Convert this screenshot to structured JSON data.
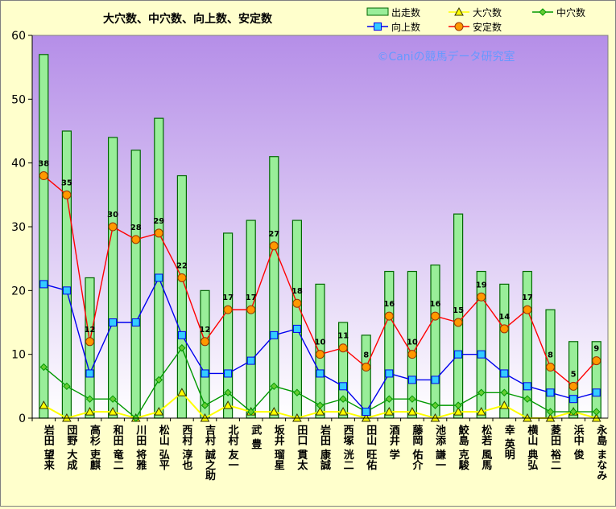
{
  "chart_data": {
    "type": "bar",
    "title": "大穴数、中穴数、向上数、安定数",
    "watermark": "©Caniの競馬データ研究室",
    "ylim": [
      0,
      60
    ],
    "yticks": [
      0,
      10,
      20,
      30,
      40,
      50,
      60
    ],
    "grid": false,
    "legend_position": "top-right",
    "colors": {
      "plot_top": "#b58ee8",
      "plot_bottom": "#ffffff",
      "bar_fill": "#99ee99",
      "bar_stroke": "#006600",
      "big": "#ffff00",
      "mid": "#009900",
      "up": "#0000ee",
      "stable": "#ff0000",
      "stable_marker": "#ff9900",
      "up_marker": "#33ccff",
      "watermark": "#6699ff"
    },
    "categories": [
      "岩田 望来",
      "団野 大成",
      "高杉 吏麒",
      "和田 竜二",
      "川田 将雅",
      "松山 弘平",
      "西村 淳也",
      "吉村 誠之助",
      "北村 友一",
      "武 豊",
      "坂井 瑠星",
      "田口 貫太",
      "岩田 康誠",
      "西塚 洸二",
      "田山 旺佑",
      "酒井 学",
      "藤岡 佑介",
      "池添 謙一",
      "鮫島 克駿",
      "松若 風馬",
      "幸 英明",
      "横山 典弘",
      "菱田 裕二",
      "浜中 俊",
      "永島 まなみ"
    ],
    "series": [
      {
        "name": "出走数",
        "type": "bar",
        "values": [
          57,
          45,
          22,
          44,
          42,
          47,
          38,
          20,
          29,
          31,
          41,
          31,
          21,
          15,
          13,
          23,
          23,
          24,
          32,
          23,
          21,
          23,
          17,
          12,
          12
        ]
      },
      {
        "name": "大穴数",
        "type": "line",
        "values": [
          2,
          0,
          1,
          1,
          0,
          1,
          4,
          0,
          2,
          1,
          1,
          0,
          1,
          1,
          0,
          1,
          1,
          0,
          1,
          1,
          2,
          0,
          0,
          1,
          0
        ]
      },
      {
        "name": "中穴数",
        "type": "line",
        "values": [
          8,
          5,
          3,
          3,
          0,
          6,
          11,
          2,
          4,
          1,
          5,
          4,
          2,
          3,
          1,
          3,
          3,
          2,
          2,
          4,
          4,
          3,
          1,
          1,
          1
        ]
      },
      {
        "name": "向上数",
        "type": "line",
        "values": [
          21,
          20,
          7,
          15,
          15,
          22,
          13,
          7,
          7,
          9,
          13,
          14,
          7,
          5,
          1,
          7,
          6,
          6,
          10,
          10,
          7,
          5,
          4,
          3,
          4
        ]
      },
      {
        "name": "安定数",
        "type": "line",
        "values": [
          38,
          35,
          12,
          30,
          28,
          29,
          22,
          12,
          17,
          17,
          27,
          18,
          10,
          11,
          8,
          16,
          10,
          16,
          15,
          19,
          14,
          17,
          8,
          5,
          9
        ]
      }
    ]
  }
}
